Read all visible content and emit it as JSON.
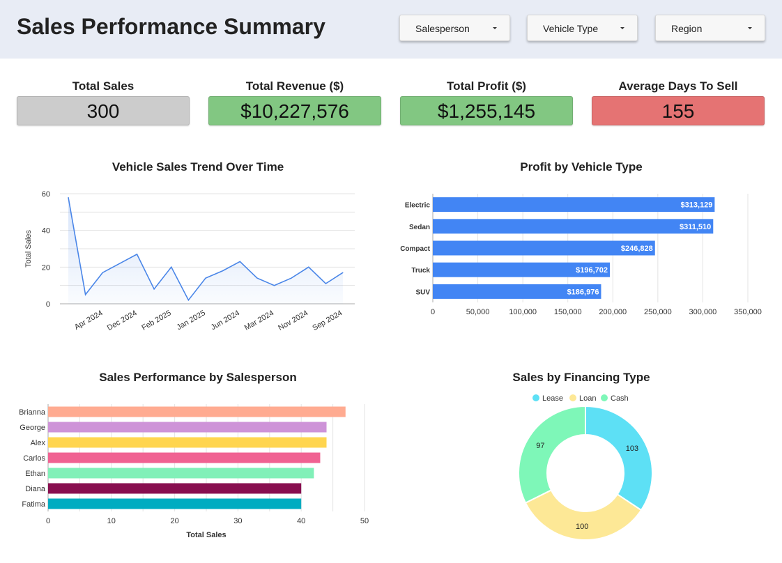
{
  "header": {
    "title": "Sales Performance Summary",
    "filters": [
      {
        "label": "Salesperson"
      },
      {
        "label": "Vehicle Type"
      },
      {
        "label": "Region"
      }
    ]
  },
  "kpis": [
    {
      "title": "Total Sales",
      "value": "300",
      "color": "#cccccc"
    },
    {
      "title": "Total Revenue ($)",
      "value": "$10,227,576",
      "color": "#82c782"
    },
    {
      "title": "Total Profit ($)",
      "value": "$1,255,145",
      "color": "#82c782"
    },
    {
      "title": "Average Days To Sell",
      "value": "155",
      "color": "#e57373"
    }
  ],
  "chart_data": [
    {
      "type": "line",
      "title": "Vehicle Sales Trend Over Time",
      "ylabel": "Total Sales",
      "xlabel": "",
      "ylim": [
        0,
        60
      ],
      "yticks": [
        0,
        20,
        40,
        60
      ],
      "x_tick_labels": [
        "Apr 2024",
        "Dec 2024",
        "Feb 2025",
        "Jan 2025",
        "Jun 2024",
        "Mar 2024",
        "Nov 2024",
        "Sep 2024"
      ],
      "values": [
        58,
        5,
        17,
        22,
        27,
        8,
        20,
        2,
        14,
        18,
        23,
        14,
        10,
        14,
        20,
        11,
        17
      ],
      "grid": true,
      "color": "#4a86e8"
    },
    {
      "type": "bar",
      "orientation": "horizontal",
      "title": "Profit by Vehicle Type",
      "categories": [
        "Electric",
        "Sedan",
        "Compact",
        "Truck",
        "SUV"
      ],
      "values": [
        313129,
        311510,
        246828,
        196702,
        186976
      ],
      "data_labels": [
        "$313,129",
        "$311,510",
        "$246,828",
        "$196,702",
        "$186,976"
      ],
      "xlim": [
        0,
        350000
      ],
      "xticks": [
        "0",
        "50,000",
        "100,000",
        "150,000",
        "200,000",
        "250,000",
        "300,000",
        "350,000"
      ],
      "color": "#4285f4"
    },
    {
      "type": "bar",
      "orientation": "horizontal",
      "title": "Sales Performance by Salesperson",
      "xlabel": "Total Sales",
      "categories": [
        "Brianna",
        "George",
        "Alex",
        "Carlos",
        "Ethan",
        "Diana",
        "Fatima"
      ],
      "values": [
        47,
        44,
        44,
        43,
        42,
        40,
        40
      ],
      "colors": [
        "#ffab91",
        "#ce93d8",
        "#ffd54f",
        "#f06292",
        "#81f0b8",
        "#880e4f",
        "#00acc1"
      ],
      "xlim": [
        0,
        50
      ],
      "xticks": [
        "0",
        "10",
        "20",
        "30",
        "40",
        "50"
      ]
    },
    {
      "type": "pie",
      "title": "Sales by Financing Type",
      "labels": [
        "Lease",
        "Loan",
        "Cash"
      ],
      "values": [
        103,
        100,
        97
      ],
      "colors": [
        "#5de0f5",
        "#fde896",
        "#7ef7b8"
      ],
      "legend_position": "top"
    }
  ]
}
